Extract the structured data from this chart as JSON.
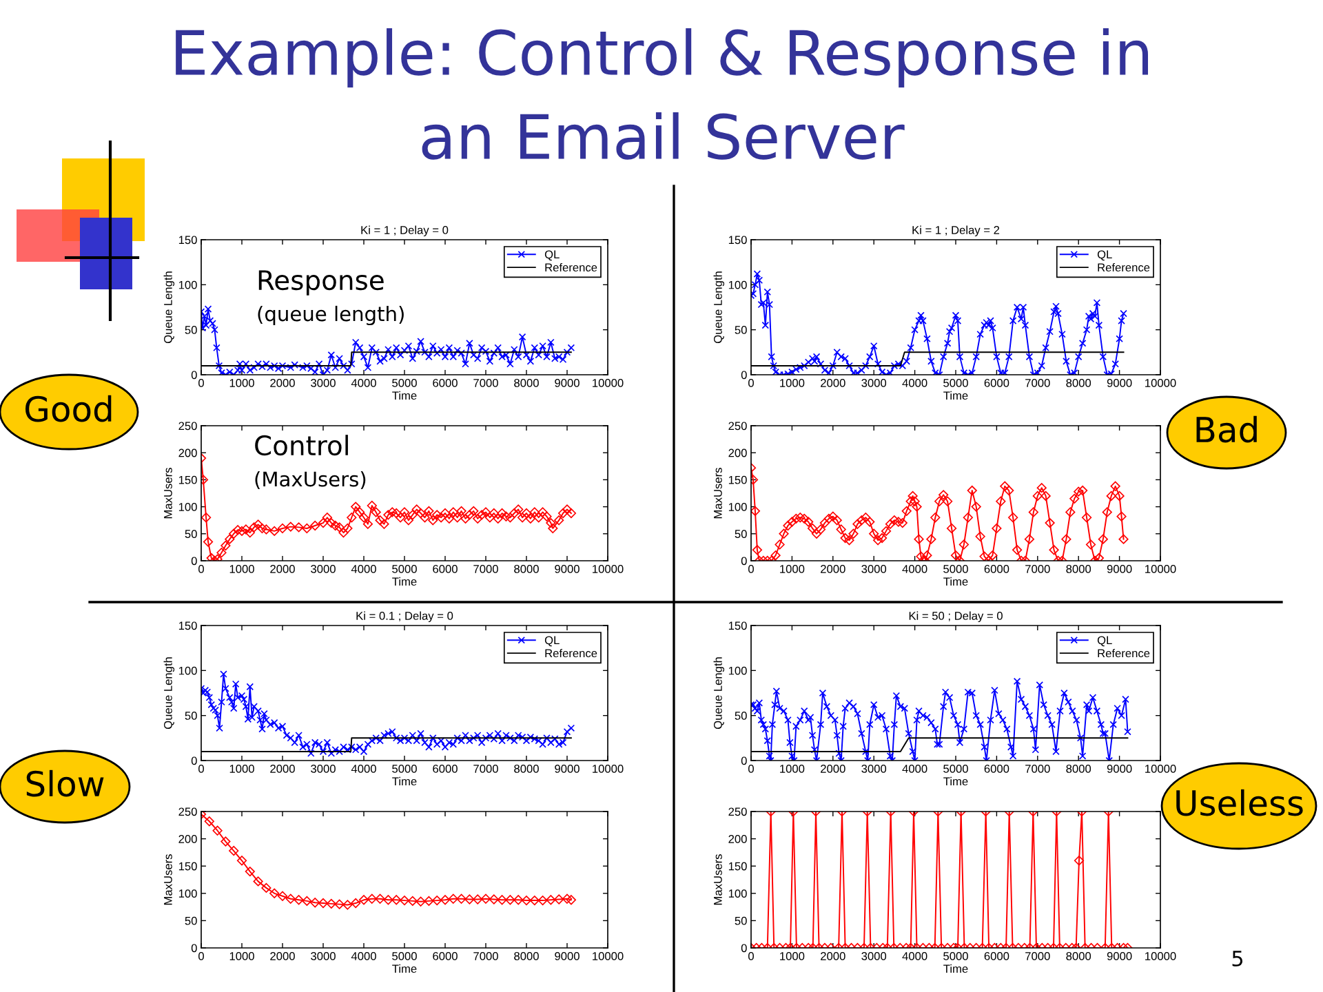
{
  "chart_data": [
    {
      "type": "line",
      "title": "Ki = 1 ; Delay = 0",
      "xlabel": "Time",
      "ylabel": "Queue Length",
      "xlim": [
        0,
        10000
      ],
      "xticks": [
        0,
        1000,
        2000,
        3000,
        4000,
        5000,
        6000,
        7000,
        8000,
        9000,
        10000
      ],
      "ylim": [
        0,
        150
      ],
      "yticks": [
        0,
        50,
        100,
        150
      ],
      "legend": "top right",
      "annotations": [
        "Example: Control & Response in",
        "an Email Server",
        "Response",
        "(queue length)"
      ],
      "series": [
        {
          "name": "QL",
          "color": "#0000ff",
          "marker": "cross",
          "x": [
            0,
            30,
            80,
            120,
            170,
            220,
            280,
            330,
            380,
            440,
            500,
            600,
            700,
            800,
            900,
            950,
            1000,
            1100,
            1200,
            1300,
            1400,
            1500,
            1600,
            1700,
            1800,
            1900,
            2000,
            2200,
            2300,
            2500,
            2600,
            2700,
            2800,
            2900,
            3000,
            3100,
            3200,
            3300,
            3400,
            3500,
            3600,
            3700,
            3800,
            3900,
            4000,
            4100,
            4200,
            4300,
            4400,
            4500,
            4600,
            4700,
            4800,
            4900,
            5000,
            5100,
            5200,
            5300,
            5400,
            5500,
            5600,
            5700,
            5800,
            5900,
            6000,
            6100,
            6200,
            6300,
            6400,
            6500,
            6600,
            6700,
            6800,
            6900,
            7000,
            7100,
            7200,
            7300,
            7400,
            7500,
            7600,
            7700,
            7800,
            7900,
            8000,
            8100,
            8200,
            8300,
            8400,
            8500,
            8600,
            8700,
            8800,
            8900,
            9000,
            9100
          ],
          "values": [
            70,
            52,
            65,
            55,
            73,
            60,
            57,
            50,
            30,
            10,
            2,
            0,
            3,
            0,
            5,
            12,
            5,
            12,
            5,
            8,
            12,
            9,
            12,
            8,
            10,
            7,
            10,
            8,
            11,
            8,
            10,
            7,
            3,
            12,
            0,
            5,
            22,
            8,
            18,
            10,
            5,
            12,
            36,
            30,
            20,
            8,
            30,
            25,
            15,
            18,
            28,
            20,
            30,
            22,
            27,
            32,
            18,
            26,
            37,
            25,
            20,
            32,
            24,
            28,
            20,
            30,
            20,
            27,
            24,
            12,
            35,
            22,
            18,
            30,
            26,
            15,
            24,
            30,
            20,
            22,
            12,
            28,
            20,
            42,
            22,
            15,
            30,
            22,
            32,
            20,
            36,
            18,
            20,
            17,
            25,
            30
          ]
        },
        {
          "name": "Reference",
          "color": "#000000",
          "marker": "none",
          "x": [
            0,
            3680,
            3700,
            9100
          ],
          "values": [
            10,
            10,
            25,
            25
          ]
        }
      ]
    },
    {
      "type": "line",
      "xlabel": "Time",
      "ylabel": "MaxUsers",
      "xlim": [
        0,
        10000
      ],
      "xticks": [
        0,
        1000,
        2000,
        3000,
        4000,
        5000,
        6000,
        7000,
        8000,
        9000,
        10000
      ],
      "ylim": [
        0,
        250
      ],
      "yticks": [
        0,
        50,
        100,
        150,
        200,
        250
      ],
      "annotations": [
        "Control",
        "(MaxUsers)",
        "Good"
      ],
      "series": [
        {
          "color": "#ff0000",
          "marker": "diamond",
          "x": [
            0,
            50,
            120,
            170,
            250,
            330,
            400,
            500,
            600,
            700,
            800,
            900,
            1000,
            1100,
            1200,
            1300,
            1400,
            1500,
            1600,
            1800,
            2000,
            2200,
            2400,
            2600,
            2800,
            3000,
            3100,
            3200,
            3300,
            3400,
            3500,
            3600,
            3700,
            3800,
            3900,
            4000,
            4100,
            4200,
            4300,
            4400,
            4500,
            4600,
            4700,
            4800,
            4900,
            5000,
            5100,
            5200,
            5300,
            5400,
            5500,
            5600,
            5700,
            5800,
            5900,
            6000,
            6100,
            6200,
            6300,
            6400,
            6500,
            6600,
            6700,
            6800,
            6900,
            7000,
            7100,
            7200,
            7300,
            7400,
            7500,
            7600,
            7700,
            7800,
            7900,
            8000,
            8100,
            8200,
            8300,
            8400,
            8500,
            8600,
            8650,
            8800,
            8900,
            9000,
            9100
          ],
          "values": [
            190,
            150,
            80,
            35,
            5,
            0,
            3,
            15,
            28,
            40,
            50,
            57,
            55,
            58,
            52,
            62,
            67,
            60,
            58,
            55,
            60,
            63,
            62,
            60,
            65,
            70,
            80,
            70,
            65,
            62,
            52,
            60,
            80,
            100,
            90,
            80,
            68,
            102,
            90,
            75,
            68,
            85,
            90,
            88,
            80,
            90,
            75,
            85,
            95,
            88,
            80,
            92,
            75,
            85,
            80,
            88,
            78,
            90,
            80,
            92,
            78,
            85,
            92,
            78,
            85,
            90,
            80,
            88,
            78,
            88,
            82,
            80,
            88,
            95,
            80,
            88,
            78,
            90,
            80,
            90,
            82,
            70,
            60,
            75,
            88,
            95,
            88
          ]
        }
      ]
    },
    {
      "type": "line",
      "title": "Ki = 1 ; Delay = 2",
      "xlabel": "Time",
      "ylabel": "Queue Length",
      "xlim": [
        0,
        10000
      ],
      "xticks": [
        0,
        1000,
        2000,
        3000,
        4000,
        5000,
        6000,
        7000,
        8000,
        9000,
        10000
      ],
      "ylim": [
        0,
        150
      ],
      "yticks": [
        0,
        50,
        100,
        150
      ],
      "legend": "top right",
      "series": [
        {
          "name": "QL",
          "color": "#0000ff",
          "marker": "cross",
          "x": [
            0,
            50,
            100,
            150,
            200,
            250,
            300,
            350,
            400,
            450,
            500,
            550,
            600,
            700,
            800,
            900,
            1000,
            1100,
            1200,
            1300,
            1400,
            1500,
            1550,
            1600,
            1700,
            1800,
            1900,
            2000,
            2100,
            2200,
            2300,
            2400,
            2500,
            2600,
            2700,
            2800,
            2900,
            3000,
            3100,
            3200,
            3300,
            3400,
            3500,
            3600,
            3700,
            3800,
            3900,
            4000,
            4100,
            4150,
            4200,
            4300,
            4400,
            4500,
            4600,
            4700,
            4800,
            4850,
            4900,
            5000,
            5050,
            5100,
            5200,
            5300,
            5400,
            5500,
            5600,
            5700,
            5750,
            5800,
            5850,
            5900,
            6000,
            6100,
            6200,
            6300,
            6400,
            6500,
            6600,
            6650,
            6700,
            6800,
            6900,
            7000,
            7100,
            7200,
            7300,
            7400,
            7450,
            7500,
            7600,
            7700,
            7800,
            7900,
            8000,
            8100,
            8200,
            8250,
            8300,
            8350,
            8400,
            8450,
            8500,
            8600,
            8700,
            8800,
            8900,
            9000,
            9050,
            9100
          ],
          "values": [
            88,
            90,
            100,
            112,
            105,
            78,
            80,
            55,
            92,
            78,
            20,
            10,
            3,
            0,
            0,
            1,
            3,
            6,
            8,
            10,
            14,
            18,
            15,
            20,
            12,
            5,
            2,
            10,
            25,
            20,
            18,
            10,
            2,
            2,
            5,
            10,
            20,
            32,
            12,
            3,
            0,
            2,
            10,
            12,
            10,
            15,
            30,
            50,
            60,
            66,
            60,
            40,
            15,
            2,
            0,
            20,
            35,
            48,
            52,
            66,
            60,
            20,
            2,
            0,
            2,
            20,
            45,
            55,
            58,
            55,
            60,
            52,
            20,
            2,
            2,
            20,
            60,
            75,
            62,
            75,
            55,
            20,
            0,
            2,
            10,
            30,
            48,
            70,
            76,
            68,
            45,
            15,
            0,
            2,
            20,
            35,
            50,
            65,
            62,
            68,
            65,
            80,
            55,
            20,
            0,
            1,
            12,
            40,
            60,
            68
          ]
        },
        {
          "name": "Reference",
          "color": "#000000",
          "marker": "none",
          "x": [
            0,
            3650,
            3750,
            9100
          ],
          "values": [
            10,
            10,
            25,
            25
          ]
        }
      ]
    },
    {
      "type": "line",
      "xlabel": "Time",
      "ylabel": "MaxUsers",
      "xlim": [
        0,
        10000
      ],
      "xticks": [
        0,
        1000,
        2000,
        3000,
        4000,
        5000,
        6000,
        7000,
        8000,
        9000,
        10000
      ],
      "ylim": [
        0,
        250
      ],
      "yticks": [
        0,
        50,
        100,
        150,
        200,
        250
      ],
      "annotations": [
        "Bad"
      ],
      "series": [
        {
          "color": "#ff0000",
          "marker": "diamond",
          "x": [
            0,
            50,
            100,
            150,
            200,
            300,
            400,
            500,
            600,
            700,
            800,
            900,
            1000,
            1100,
            1200,
            1300,
            1400,
            1500,
            1600,
            1700,
            1800,
            1900,
            2000,
            2100,
            2200,
            2300,
            2400,
            2500,
            2600,
            2700,
            2800,
            2900,
            3000,
            3100,
            3200,
            3300,
            3400,
            3500,
            3600,
            3700,
            3800,
            3900,
            3950,
            4000,
            4050,
            4100,
            4150,
            4200,
            4250,
            4300,
            4400,
            4500,
            4600,
            4700,
            4800,
            4900,
            5000,
            5100,
            5200,
            5300,
            5400,
            5500,
            5600,
            5700,
            5800,
            5900,
            6000,
            6100,
            6200,
            6300,
            6400,
            6500,
            6600,
            6700,
            6800,
            6900,
            7000,
            7100,
            7200,
            7300,
            7400,
            7500,
            7600,
            7700,
            7800,
            7900,
            8000,
            8100,
            8200,
            8300,
            8400,
            8500,
            8600,
            8700,
            8800,
            8900,
            9000,
            9050,
            9100
          ],
          "values": [
            172,
            150,
            92,
            20,
            0,
            0,
            0,
            0,
            10,
            30,
            50,
            65,
            72,
            78,
            80,
            78,
            72,
            60,
            50,
            58,
            70,
            78,
            82,
            75,
            58,
            42,
            38,
            50,
            68,
            75,
            80,
            72,
            50,
            38,
            42,
            55,
            68,
            75,
            72,
            70,
            92,
            110,
            120,
            110,
            100,
            40,
            8,
            0,
            0,
            10,
            40,
            80,
            110,
            122,
            110,
            60,
            10,
            0,
            30,
            80,
            130,
            100,
            45,
            8,
            0,
            10,
            60,
            110,
            138,
            130,
            80,
            20,
            0,
            0,
            40,
            90,
            120,
            135,
            120,
            70,
            20,
            0,
            0,
            40,
            90,
            115,
            128,
            130,
            80,
            30,
            0,
            5,
            40,
            90,
            120,
            138,
            120,
            82,
            40
          ]
        }
      ]
    },
    {
      "type": "line",
      "title": "Ki = 0.1 ; Delay = 0",
      "xlabel": "Time",
      "ylabel": "Queue Length",
      "xlim": [
        0,
        10000
      ],
      "xticks": [
        0,
        1000,
        2000,
        3000,
        4000,
        5000,
        6000,
        7000,
        8000,
        9000,
        10000
      ],
      "ylim": [
        0,
        150
      ],
      "yticks": [
        0,
        50,
        100,
        150
      ],
      "legend": "top right",
      "series": [
        {
          "name": "QL",
          "color": "#0000ff",
          "marker": "cross",
          "x": [
            0,
            50,
            100,
            150,
            200,
            250,
            300,
            350,
            400,
            450,
            500,
            550,
            600,
            700,
            750,
            800,
            850,
            900,
            1000,
            1050,
            1100,
            1150,
            1200,
            1250,
            1300,
            1400,
            1450,
            1500,
            1550,
            1600,
            1700,
            1800,
            1900,
            2000,
            2100,
            2200,
            2300,
            2400,
            2500,
            2600,
            2700,
            2800,
            2900,
            3000,
            3100,
            3200,
            3300,
            3400,
            3500,
            3600,
            3700,
            3800,
            3900,
            4000,
            4100,
            4200,
            4300,
            4400,
            4500,
            4600,
            4700,
            4800,
            4900,
            5000,
            5100,
            5200,
            5300,
            5400,
            5500,
            5600,
            5700,
            5800,
            5900,
            6000,
            6100,
            6200,
            6300,
            6400,
            6500,
            6600,
            6700,
            6800,
            6900,
            7000,
            7100,
            7200,
            7300,
            7400,
            7500,
            7600,
            7700,
            7800,
            7900,
            8000,
            8100,
            8200,
            8300,
            8400,
            8500,
            8600,
            8700,
            8800,
            8900,
            9000,
            9100
          ],
          "values": [
            80,
            75,
            78,
            76,
            70,
            62,
            58,
            56,
            50,
            36,
            65,
            96,
            80,
            70,
            65,
            58,
            85,
            70,
            72,
            68,
            60,
            46,
            82,
            48,
            60,
            55,
            45,
            35,
            52,
            45,
            40,
            42,
            36,
            38,
            28,
            25,
            20,
            28,
            15,
            18,
            8,
            20,
            18,
            10,
            20,
            8,
            12,
            10,
            15,
            12,
            15,
            12,
            15,
            10,
            18,
            22,
            25,
            22,
            28,
            30,
            32,
            25,
            22,
            25,
            22,
            28,
            22,
            30,
            20,
            15,
            25,
            18,
            22,
            15,
            20,
            18,
            25,
            22,
            28,
            22,
            25,
            28,
            20,
            25,
            28,
            24,
            30,
            22,
            28,
            25,
            22,
            28,
            26,
            22,
            26,
            24,
            22,
            18,
            25,
            20,
            24,
            18,
            20,
            32,
            36
          ]
        },
        {
          "name": "Reference",
          "color": "#000000",
          "marker": "none",
          "x": [
            0,
            3680,
            3700,
            9100
          ],
          "values": [
            10,
            10,
            25,
            25
          ]
        }
      ]
    },
    {
      "type": "line",
      "xlabel": "Time",
      "ylabel": "MaxUsers",
      "xlim": [
        0,
        10000
      ],
      "xticks": [
        0,
        1000,
        2000,
        3000,
        4000,
        5000,
        6000,
        7000,
        8000,
        9000,
        10000
      ],
      "ylim": [
        0,
        250
      ],
      "yticks": [
        0,
        50,
        100,
        150,
        200,
        250
      ],
      "annotations": [
        "Slow"
      ],
      "series": [
        {
          "color": "#ff0000",
          "marker": "diamond",
          "x": [
            0,
            200,
            400,
            600,
            800,
            1000,
            1200,
            1400,
            1600,
            1800,
            2000,
            2200,
            2400,
            2600,
            2800,
            3000,
            3200,
            3400,
            3600,
            3800,
            4000,
            4200,
            4400,
            4600,
            4800,
            5000,
            5200,
            5400,
            5600,
            5800,
            6000,
            6200,
            6400,
            6600,
            6800,
            7000,
            7200,
            7400,
            7600,
            7800,
            8000,
            8200,
            8400,
            8600,
            8800,
            9000,
            9100
          ],
          "values": [
            245,
            232,
            215,
            195,
            178,
            160,
            140,
            122,
            110,
            100,
            95,
            90,
            88,
            86,
            83,
            82,
            81,
            80,
            79,
            82,
            88,
            90,
            90,
            88,
            88,
            87,
            86,
            85,
            86,
            87,
            88,
            90,
            90,
            89,
            89,
            90,
            89,
            88,
            88,
            88,
            87,
            87,
            87,
            88,
            89,
            90,
            88
          ]
        }
      ]
    },
    {
      "type": "line",
      "title": "Ki = 50 ; Delay = 0",
      "xlabel": "Time",
      "ylabel": "Queue Length",
      "xlim": [
        0,
        10000
      ],
      "xticks": [
        0,
        1000,
        2000,
        3000,
        4000,
        5000,
        6000,
        7000,
        8000,
        9000,
        10000
      ],
      "ylim": [
        0,
        150
      ],
      "yticks": [
        0,
        50,
        100,
        150
      ],
      "legend": "top right",
      "series": [
        {
          "name": "QL",
          "color": "#0000ff",
          "marker": "cross",
          "x": [
            0,
            50,
            100,
            150,
            200,
            250,
            300,
            350,
            400,
            450,
            480,
            520,
            580,
            620,
            700,
            800,
            900,
            950,
            1000,
            1050,
            1100,
            1200,
            1300,
            1400,
            1450,
            1500,
            1550,
            1600,
            1700,
            1750,
            1850,
            1950,
            2050,
            2100,
            2150,
            2200,
            2250,
            2300,
            2400,
            2500,
            2600,
            2700,
            2800,
            2850,
            2900,
            3000,
            3100,
            3200,
            3300,
            3400,
            3450,
            3500,
            3550,
            3650,
            3750,
            3850,
            3950,
            4000,
            4050,
            4100,
            4200,
            4300,
            4400,
            4500,
            4550,
            4600,
            4700,
            4750,
            4850,
            4950,
            5050,
            5100,
            5200,
            5300,
            5400,
            5500,
            5600,
            5700,
            5750,
            5850,
            5950,
            6050,
            6150,
            6250,
            6350,
            6400,
            6500,
            6600,
            6700,
            6800,
            6900,
            6950,
            7050,
            7150,
            7250,
            7350,
            7450,
            7550,
            7650,
            7750,
            7850,
            7950,
            8050,
            8100,
            8200,
            8250,
            8350,
            8450,
            8550,
            8600,
            8650,
            8750,
            8850,
            8950,
            9050,
            9150,
            9200
          ],
          "values": [
            62,
            62,
            58,
            55,
            64,
            45,
            40,
            35,
            22,
            5,
            0,
            40,
            62,
            77,
            58,
            55,
            45,
            20,
            5,
            0,
            38,
            45,
            55,
            45,
            48,
            28,
            12,
            0,
            40,
            75,
            60,
            50,
            45,
            28,
            8,
            0,
            38,
            58,
            64,
            60,
            52,
            30,
            10,
            0,
            40,
            62,
            48,
            50,
            35,
            5,
            0,
            40,
            72,
            60,
            58,
            30,
            10,
            0,
            45,
            55,
            50,
            48,
            42,
            35,
            18,
            18,
            60,
            76,
            70,
            50,
            40,
            20,
            35,
            76,
            75,
            50,
            40,
            15,
            0,
            45,
            78,
            52,
            45,
            35,
            15,
            5,
            88,
            68,
            60,
            50,
            35,
            12,
            84,
            62,
            50,
            40,
            10,
            55,
            75,
            65,
            55,
            45,
            25,
            5,
            62,
            55,
            70,
            55,
            40,
            30,
            30,
            0,
            40,
            58,
            50,
            68,
            32
          ]
        },
        {
          "name": "Reference",
          "color": "#000000",
          "marker": "none",
          "x": [
            0,
            3650,
            3850,
            9200
          ],
          "values": [
            10,
            10,
            25,
            25
          ]
        }
      ]
    },
    {
      "type": "line",
      "xlabel": "Time",
      "ylabel": "MaxUsers",
      "xlim": [
        0,
        10000
      ],
      "xticks": [
        0,
        1000,
        2000,
        3000,
        4000,
        5000,
        6000,
        7000,
        8000,
        9000,
        10000
      ],
      "ylim": [
        0,
        250
      ],
      "yticks": [
        0,
        50,
        100,
        150,
        200,
        250
      ],
      "annotations": [
        "Useless",
        "5"
      ],
      "series": [
        {
          "color": "#ff0000",
          "marker": "diamond",
          "x": [
            0,
            130,
            260,
            400,
            483,
            560,
            700,
            850,
            960,
            1033,
            1110,
            1250,
            1400,
            1510,
            1583,
            1660,
            1800,
            1950,
            2140,
            2222,
            2300,
            2450,
            2600,
            2760,
            2840,
            2920,
            3070,
            3220,
            3330,
            3412,
            3490,
            3640,
            3790,
            3900,
            3973,
            4050,
            4200,
            4350,
            4490,
            4568,
            4650,
            4800,
            4950,
            5050,
            5129,
            5210,
            5350,
            5500,
            5650,
            5735,
            5810,
            5950,
            6100,
            6230,
            6308,
            6390,
            6530,
            6680,
            6810,
            6891,
            6970,
            7110,
            7250,
            7390,
            7464,
            7540,
            7690,
            7840,
            7940,
            8013,
            8081,
            8160,
            8310,
            8460,
            8650,
            8732,
            8810,
            8950,
            9100,
            9200
          ],
          "values": [
            0,
            0,
            0,
            0,
            250,
            0,
            0,
            0,
            0,
            250,
            0,
            0,
            0,
            0,
            250,
            0,
            0,
            0,
            0,
            250,
            0,
            0,
            0,
            0,
            250,
            0,
            0,
            0,
            0,
            250,
            0,
            0,
            0,
            0,
            250,
            0,
            0,
            0,
            0,
            250,
            0,
            0,
            0,
            0,
            250,
            0,
            0,
            0,
            0,
            250,
            0,
            0,
            0,
            0,
            250,
            0,
            0,
            0,
            0,
            250,
            0,
            0,
            0,
            0,
            250,
            0,
            0,
            0,
            0,
            160,
            250,
            0,
            0,
            0,
            0,
            250,
            0,
            0,
            0,
            0
          ]
        }
      ]
    }
  ]
}
